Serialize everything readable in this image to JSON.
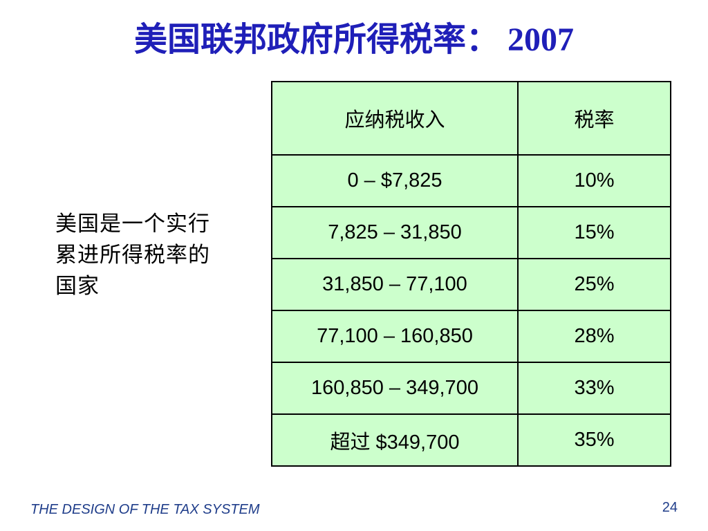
{
  "slide": {
    "title": "美国联邦政府所得税率： 2007",
    "side_note": "美国是一个实行累进所得税率的国家",
    "footer_text": "THE DESIGN OF THE TAX SYSTEM",
    "page_number": "24"
  },
  "table": {
    "headers": [
      "应纳税收入",
      "税率"
    ],
    "rows": [
      [
        "0 – $7,825",
        "10%"
      ],
      [
        "7,825 – 31,850",
        "15%"
      ],
      [
        "31,850 – 77,100",
        "25%"
      ],
      [
        "77,100 – 160,850",
        "28%"
      ],
      [
        "160,850 – 349,700",
        "33%"
      ],
      [
        "超过 $349,700",
        "35%"
      ]
    ]
  },
  "colors": {
    "title": "#1f1fb8",
    "table_fill": "#ccffcc",
    "table_border": "#000000",
    "footer": "#1f3d8a"
  }
}
